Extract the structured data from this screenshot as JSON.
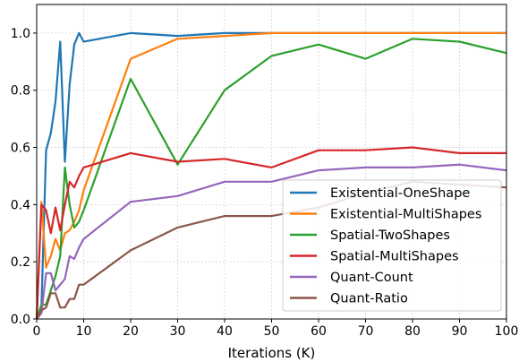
{
  "chart_data": {
    "type": "line",
    "title": "",
    "xlabel": "Iterations (K)",
    "ylabel": "",
    "xlim": [
      0,
      100
    ],
    "ylim": [
      0,
      1.1
    ],
    "xticks": [
      0,
      10,
      20,
      30,
      40,
      50,
      60,
      70,
      80,
      90,
      100
    ],
    "yticks": [
      0.0,
      0.2,
      0.4,
      0.6,
      0.8,
      1.0
    ],
    "xtick_labels": [
      "0",
      "10",
      "20",
      "30",
      "40",
      "50",
      "60",
      "70",
      "80",
      "90",
      "100"
    ],
    "ytick_labels": [
      "0.0",
      "0.2",
      "0.4",
      "0.6",
      "0.8",
      "1.0"
    ],
    "grid": true,
    "legend_position": "lower-right",
    "series": [
      {
        "name": "Existential-OneShape",
        "color": "#1f77b4",
        "x": [
          0,
          1,
          2,
          3,
          4,
          5,
          6,
          7,
          8,
          9,
          10,
          20,
          30,
          40,
          50,
          60,
          70,
          80,
          90,
          100
        ],
        "y": [
          0.0,
          0.04,
          0.59,
          0.65,
          0.76,
          0.97,
          0.55,
          0.82,
          0.96,
          1.0,
          0.97,
          1.0,
          0.99,
          1.0,
          1.0,
          1.0,
          1.0,
          1.0,
          1.0,
          1.0
        ]
      },
      {
        "name": "Existential-MultiShapes",
        "color": "#ff7f0e",
        "x": [
          0,
          1,
          2,
          3,
          4,
          5,
          6,
          7,
          8,
          9,
          10,
          20,
          30,
          40,
          50,
          60,
          70,
          80,
          90,
          100
        ],
        "y": [
          0.0,
          0.41,
          0.18,
          0.22,
          0.28,
          0.24,
          0.3,
          0.31,
          0.34,
          0.38,
          0.45,
          0.91,
          0.98,
          0.99,
          1.0,
          1.0,
          1.0,
          1.0,
          1.0,
          1.0
        ]
      },
      {
        "name": "Spatial-TwoShapes",
        "color": "#2ca02c",
        "x": [
          0,
          1,
          2,
          3,
          4,
          5,
          6,
          7,
          8,
          9,
          10,
          20,
          30,
          40,
          50,
          60,
          70,
          80,
          90,
          100
        ],
        "y": [
          0.0,
          0.05,
          0.05,
          0.1,
          0.15,
          0.22,
          0.53,
          0.4,
          0.32,
          0.34,
          0.38,
          0.84,
          0.54,
          0.8,
          0.92,
          0.96,
          0.91,
          0.98,
          0.97,
          0.93
        ]
      },
      {
        "name": "Spatial-MultiShapes",
        "color": "#d62728",
        "x": [
          0,
          1,
          2,
          3,
          4,
          5,
          6,
          7,
          8,
          9,
          10,
          20,
          30,
          40,
          50,
          60,
          70,
          80,
          90,
          100
        ],
        "y": [
          0.0,
          0.4,
          0.38,
          0.3,
          0.39,
          0.31,
          0.4,
          0.48,
          0.46,
          0.5,
          0.53,
          0.58,
          0.55,
          0.56,
          0.53,
          0.59,
          0.59,
          0.6,
          0.58,
          0.58
        ]
      },
      {
        "name": "Quant-Count",
        "color": "#9467bd",
        "x": [
          0,
          1,
          2,
          3,
          4,
          5,
          6,
          7,
          8,
          9,
          10,
          20,
          30,
          40,
          50,
          60,
          70,
          80,
          90,
          100
        ],
        "y": [
          0.0,
          0.02,
          0.16,
          0.16,
          0.1,
          0.12,
          0.14,
          0.22,
          0.21,
          0.25,
          0.28,
          0.41,
          0.43,
          0.48,
          0.48,
          0.52,
          0.53,
          0.53,
          0.54,
          0.52
        ]
      },
      {
        "name": "Quant-Ratio",
        "color": "#8c564b",
        "x": [
          0,
          1,
          2,
          3,
          4,
          5,
          6,
          7,
          8,
          9,
          10,
          20,
          30,
          40,
          50,
          60,
          70,
          80,
          90,
          100
        ],
        "y": [
          0.0,
          0.03,
          0.04,
          0.09,
          0.09,
          0.04,
          0.04,
          0.07,
          0.07,
          0.12,
          0.12,
          0.24,
          0.32,
          0.36,
          0.36,
          0.39,
          0.44,
          0.48,
          0.47,
          0.46
        ]
      }
    ]
  }
}
